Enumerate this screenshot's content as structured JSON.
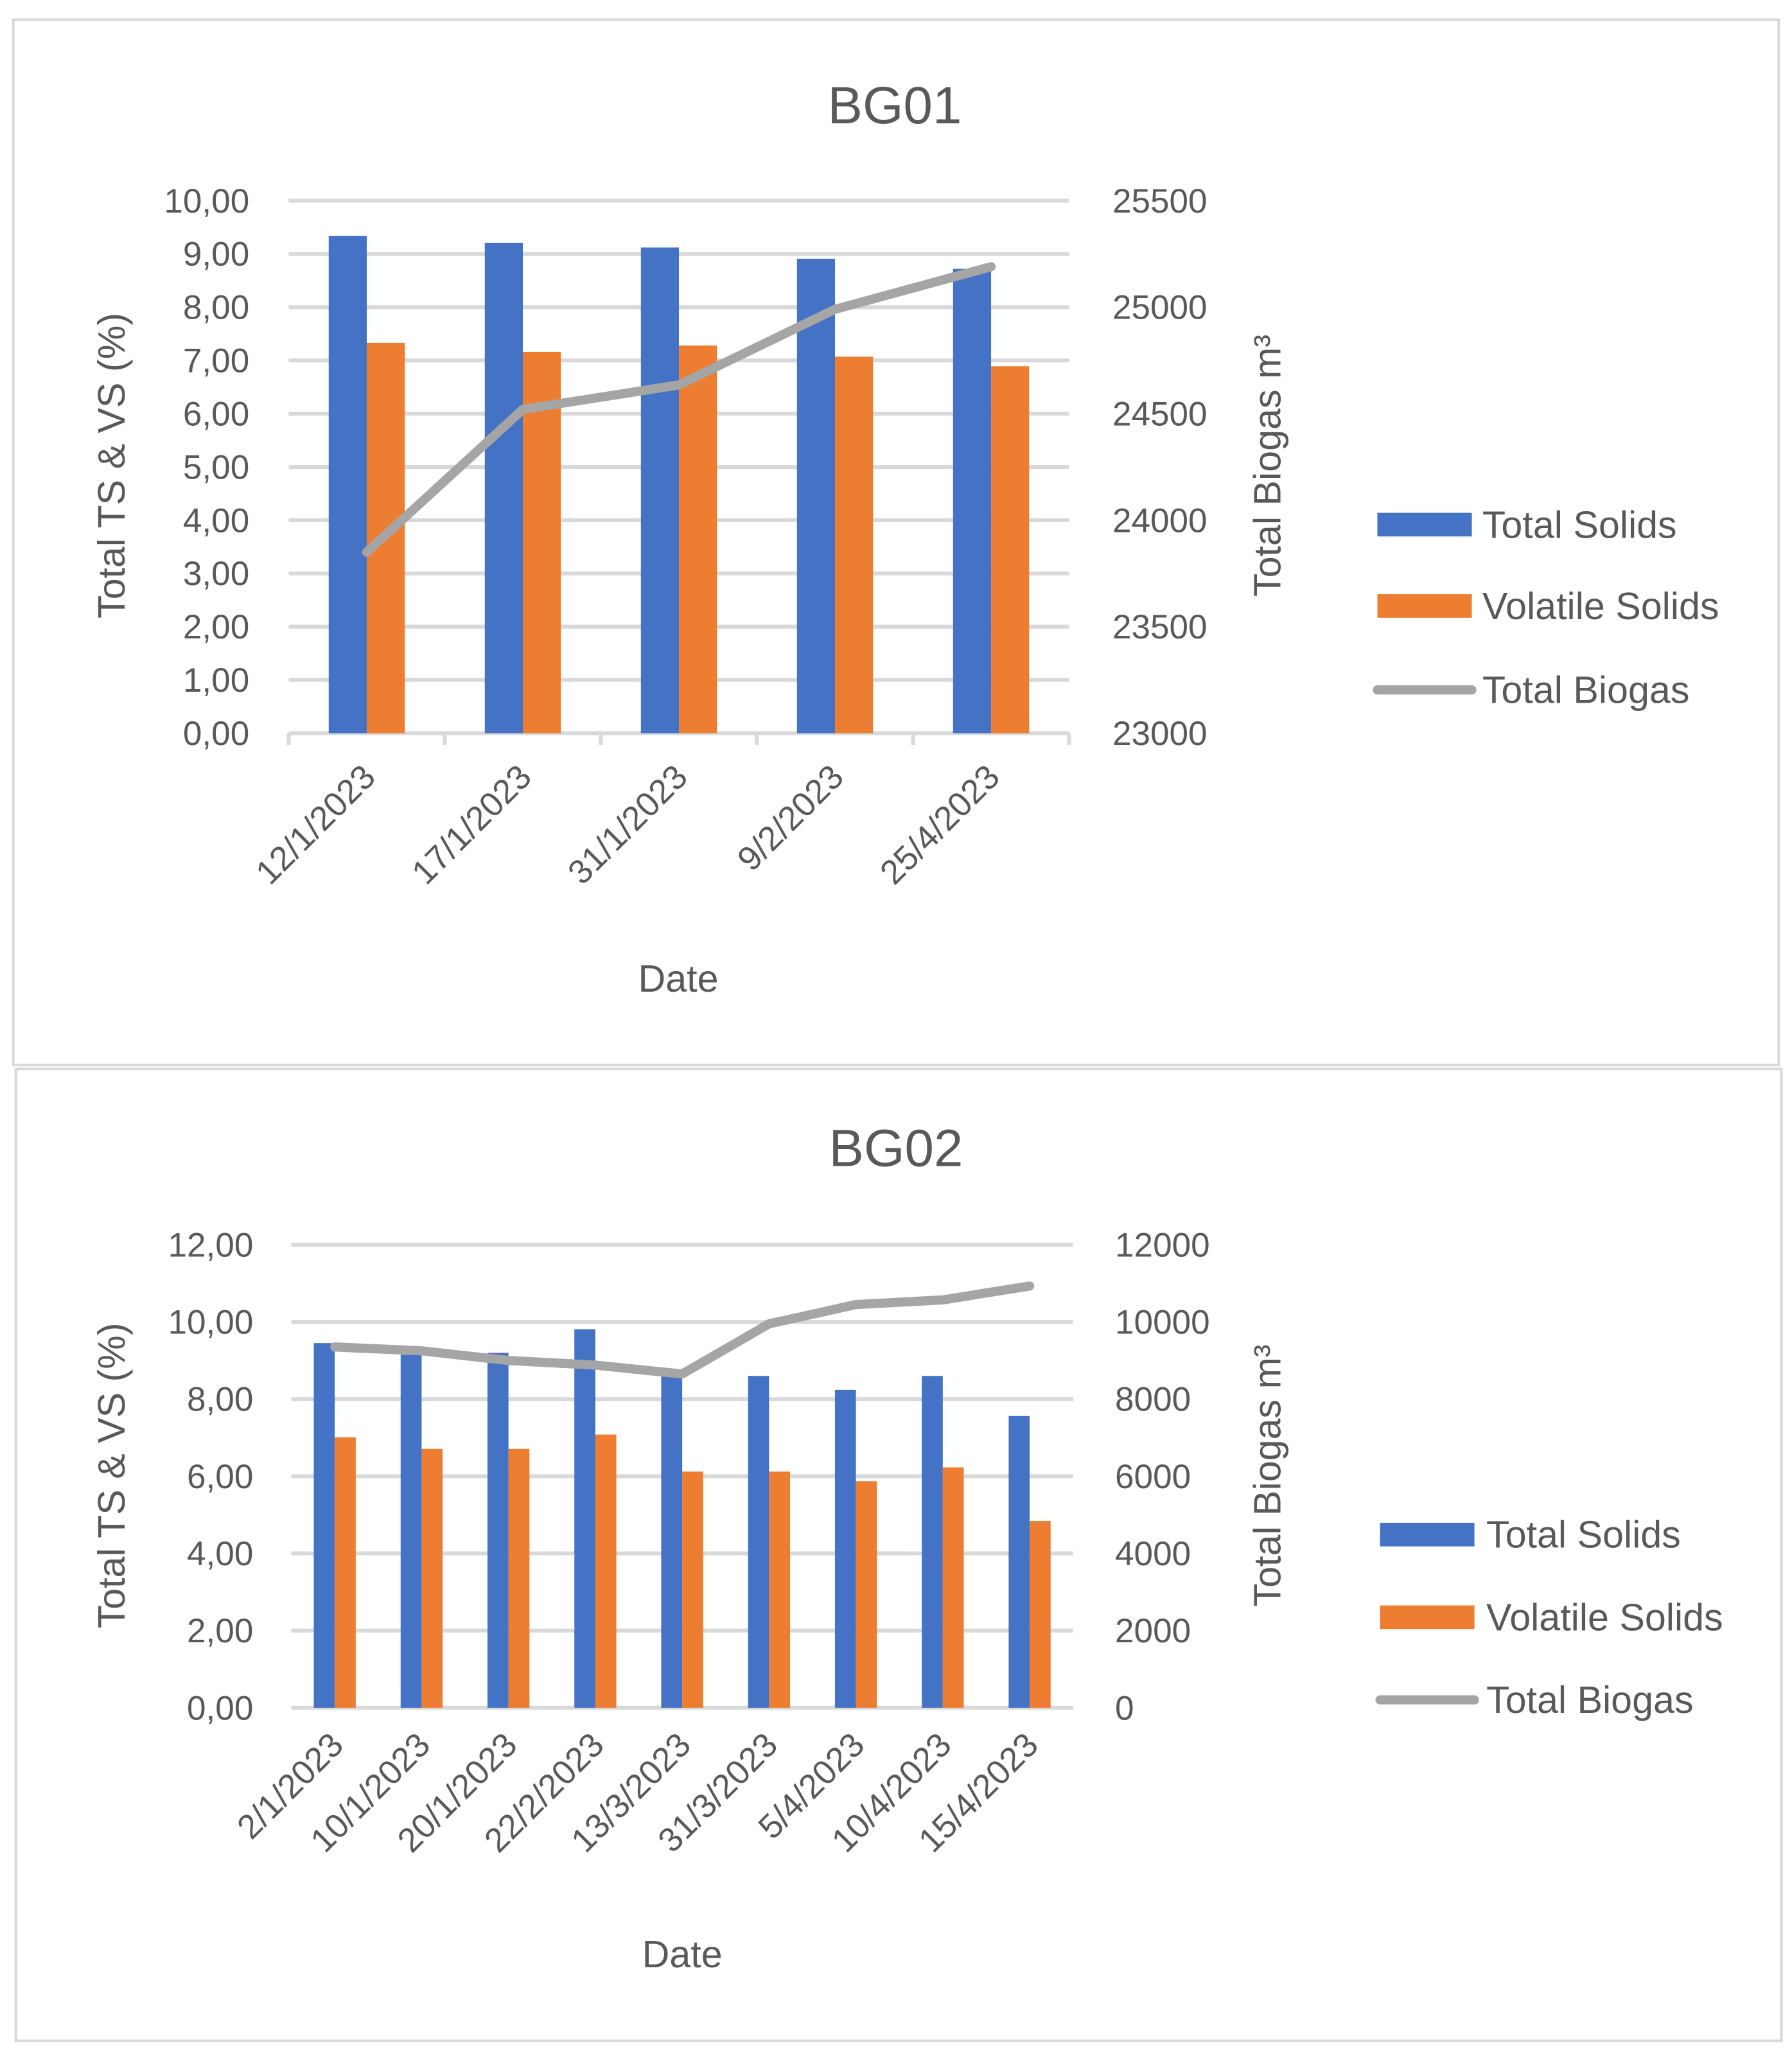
{
  "chart_data": [
    {
      "type": "bar",
      "title": "BG01",
      "xlabel": "Date",
      "ylabel": "Total TS & VS (%)",
      "y2label": "Total Biogas m³",
      "ylim": [
        0,
        10
      ],
      "y2lim": [
        23000,
        25500
      ],
      "yticks": [
        "0,00",
        "1,00",
        "2,00",
        "3,00",
        "4,00",
        "5,00",
        "6,00",
        "7,00",
        "8,00",
        "9,00",
        "10,00"
      ],
      "y2ticks": [
        "23000",
        "23500",
        "24000",
        "24500",
        "25000",
        "25500"
      ],
      "categories": [
        "12/1/2023",
        "17/1/2023",
        "31/1/2023",
        "9/2/2023",
        "25/4/2023"
      ],
      "series": [
        {
          "name": "Total Solids",
          "type": "bar",
          "axis": "left",
          "color": "#4472C4",
          "values": [
            9.34,
            9.21,
            9.12,
            8.91,
            8.72
          ]
        },
        {
          "name": "Volatile Solids",
          "type": "bar",
          "axis": "left",
          "color": "#ED7D31",
          "values": [
            7.33,
            7.16,
            7.28,
            7.07,
            6.89
          ]
        },
        {
          "name": "Total Biogas",
          "type": "line",
          "axis": "right",
          "color": "#A5A5A5",
          "values": [
            23850,
            24520,
            24635,
            24990,
            25190
          ]
        }
      ],
      "grid": true,
      "legend": "right"
    },
    {
      "type": "bar",
      "title": "BG02",
      "xlabel": "Date",
      "ylabel": "Total TS & VS (%)",
      "y2label": "Total Biogas m³",
      "ylim": [
        0,
        12
      ],
      "y2lim": [
        0,
        12000
      ],
      "yticks": [
        "0,00",
        "2,00",
        "4,00",
        "6,00",
        "8,00",
        "10,00",
        "12,00"
      ],
      "y2ticks": [
        "0",
        "2000",
        "4000",
        "6000",
        "8000",
        "10000",
        "12000"
      ],
      "categories": [
        "2/1/2023",
        "10/1/2023",
        "20/1/2023",
        "22/2/2023",
        "13/3/2023",
        "31/3/2023",
        "5/4/2023",
        "10/4/2023",
        "15/4/2023"
      ],
      "series": [
        {
          "name": "Total Solids",
          "type": "bar",
          "axis": "left",
          "color": "#4472C4",
          "values": [
            9.45,
            9.15,
            9.2,
            9.81,
            8.65,
            8.6,
            8.24,
            8.6,
            7.56
          ]
        },
        {
          "name": "Volatile Solids",
          "type": "bar",
          "axis": "left",
          "color": "#ED7D31",
          "values": [
            7.01,
            6.71,
            6.71,
            7.08,
            6.12,
            6.12,
            5.87,
            6.23,
            4.84
          ]
        },
        {
          "name": "Total Biogas",
          "type": "line",
          "axis": "right",
          "color": "#A5A5A5",
          "values": [
            9350,
            9250,
            9000,
            8880,
            8650,
            9950,
            10450,
            10570,
            10930
          ]
        }
      ],
      "grid": true,
      "legend": "right"
    }
  ]
}
